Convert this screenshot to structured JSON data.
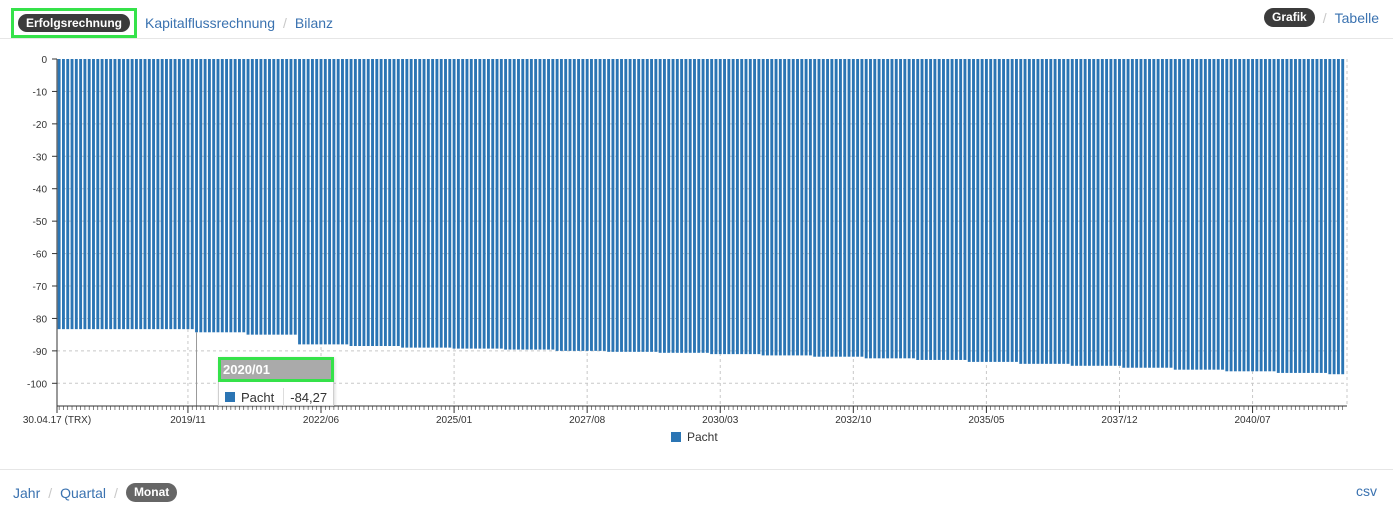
{
  "topnav": {
    "views": [
      "Erfolgsrechnung",
      "Kapitalflussrechnung",
      "Bilanz"
    ],
    "active_view": "Erfolgsrechnung",
    "modes": [
      "Grafik",
      "Tabelle"
    ],
    "active_mode": "Grafik"
  },
  "bottomnav": {
    "periods": [
      "Jahr",
      "Quartal",
      "Monat"
    ],
    "active_period": "Monat",
    "csv_label": "csv"
  },
  "tooltip": {
    "title": "2020/01",
    "series": "Pacht",
    "value": "-84,27"
  },
  "colors": {
    "bar": "#2b75b4",
    "link": "#3a72b0",
    "highlight": "#35e24a"
  },
  "chart_data": {
    "type": "bar",
    "title": "",
    "xlabel": "",
    "ylabel": "",
    "ylim": [
      -107,
      0
    ],
    "yticks": [
      0,
      -10,
      -20,
      -30,
      -40,
      -50,
      -60,
      -70,
      -80,
      -90,
      -100
    ],
    "xtick_labels": [
      "30.04.17 (TRX)",
      "2019/11",
      "2022/06",
      "2025/01",
      "2027/08",
      "2030/03",
      "2032/10",
      "2035/05",
      "2037/12",
      "2040/07"
    ],
    "x_start": "2017/05",
    "x_end": "2042/04",
    "period": "monthly",
    "grid": true,
    "legend": {
      "position": "bottom",
      "entries": [
        "Pacht"
      ]
    },
    "series": [
      {
        "name": "Pacht",
        "segments": [
          {
            "from": "2017/05",
            "to": "2019/12",
            "value": -83.3
          },
          {
            "from": "2020/01",
            "to": "2020/12",
            "value": -84.27
          },
          {
            "from": "2021/01",
            "to": "2021/12",
            "value": -85.0
          },
          {
            "from": "2022/01",
            "to": "2022/12",
            "value": -88.0
          },
          {
            "from": "2023/01",
            "to": "2023/12",
            "value": -88.5
          },
          {
            "from": "2024/01",
            "to": "2024/12",
            "value": -89.0
          },
          {
            "from": "2025/01",
            "to": "2025/12",
            "value": -89.3
          },
          {
            "from": "2026/01",
            "to": "2026/12",
            "value": -89.6
          },
          {
            "from": "2027/01",
            "to": "2027/12",
            "value": -90.0
          },
          {
            "from": "2028/01",
            "to": "2028/12",
            "value": -90.3
          },
          {
            "from": "2029/01",
            "to": "2029/12",
            "value": -90.6
          },
          {
            "from": "2030/01",
            "to": "2030/12",
            "value": -91.0
          },
          {
            "from": "2031/01",
            "to": "2031/12",
            "value": -91.4
          },
          {
            "from": "2032/01",
            "to": "2032/12",
            "value": -91.8
          },
          {
            "from": "2033/01",
            "to": "2033/12",
            "value": -92.3
          },
          {
            "from": "2034/01",
            "to": "2034/12",
            "value": -92.8
          },
          {
            "from": "2035/01",
            "to": "2035/12",
            "value": -93.4
          },
          {
            "from": "2036/01",
            "to": "2036/12",
            "value": -94.0
          },
          {
            "from": "2037/01",
            "to": "2037/12",
            "value": -94.6
          },
          {
            "from": "2038/01",
            "to": "2038/12",
            "value": -95.2
          },
          {
            "from": "2039/01",
            "to": "2039/12",
            "value": -95.8
          },
          {
            "from": "2040/01",
            "to": "2040/12",
            "value": -96.3
          },
          {
            "from": "2041/01",
            "to": "2041/12",
            "value": -96.8
          },
          {
            "from": "2042/01",
            "to": "2042/04",
            "value": -97.2
          }
        ]
      }
    ]
  }
}
